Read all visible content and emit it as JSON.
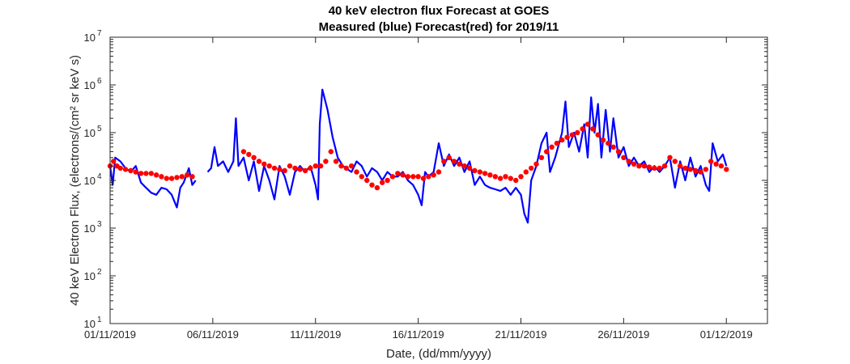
{
  "chart_data": {
    "type": "line",
    "title": "40 keV electron flux Forecast at GOES",
    "subtitle": "Measured (blue) Forecast(red) for 2019/11",
    "xlabel": "Date, (dd/mm/yyyy)",
    "ylabel": "40 keV Electron Flux, (electrons/(cm² sr keV s)",
    "yscale": "log",
    "xlim": [
      "2019-11-01",
      "2019-12-03"
    ],
    "ylim": [
      10,
      10000000
    ],
    "x_ticks": [
      "01/11/2019",
      "06/11/2019",
      "11/11/2019",
      "16/11/2019",
      "21/11/2019",
      "26/11/2019",
      "01/12/2019"
    ],
    "y_ticks": [
      {
        "base": "10",
        "exp": "1"
      },
      {
        "base": "10",
        "exp": "2"
      },
      {
        "base": "10",
        "exp": "3"
      },
      {
        "base": "10",
        "exp": "4"
      },
      {
        "base": "10",
        "exp": "5"
      },
      {
        "base": "10",
        "exp": "6"
      },
      {
        "base": "10",
        "exp": "7"
      }
    ],
    "grid": false,
    "box": true,
    "colors": {
      "measured": "#0000ff",
      "forecast": "#ff0000",
      "axis": "#262626"
    },
    "series": [
      {
        "style": "line",
        "color": "#0000ff",
        "points": [
          [
            "2019-11-01 00:00",
            20000
          ],
          [
            "2019-11-01 03:00",
            8000
          ],
          [
            "2019-11-01 06:00",
            30000
          ],
          [
            "2019-11-01 12:00",
            25000
          ],
          [
            "2019-11-01 18:00",
            18000
          ],
          [
            "2019-11-02 00:00",
            15000
          ],
          [
            "2019-11-02 06:00",
            20000
          ],
          [
            "2019-11-02 12:00",
            9000
          ],
          [
            "2019-11-02 18:00",
            7000
          ],
          [
            "2019-11-03 00:00",
            5500
          ],
          [
            "2019-11-03 06:00",
            5000
          ],
          [
            "2019-11-03 12:00",
            7000
          ],
          [
            "2019-11-03 18:00",
            6500
          ],
          [
            "2019-11-04 00:00",
            5000
          ],
          [
            "2019-11-04 06:00",
            2700
          ],
          [
            "2019-11-04 10:00",
            7000
          ],
          [
            "2019-11-04 14:00",
            9000
          ],
          [
            "2019-11-04 20:00",
            18000
          ],
          [
            "2019-11-05 00:00",
            8000
          ],
          [
            "2019-11-05 04:00",
            10000
          ],
          [
            null,
            null
          ],
          [
            "2019-11-05 18:00",
            15000
          ],
          [
            "2019-11-05 22:00",
            18000
          ],
          [
            "2019-11-06 02:00",
            50000
          ],
          [
            "2019-11-06 06:00",
            20000
          ],
          [
            "2019-11-06 12:00",
            25000
          ],
          [
            "2019-11-06 18:00",
            15000
          ],
          [
            "2019-11-07 00:00",
            25000
          ],
          [
            "2019-11-07 03:00",
            200000
          ],
          [
            "2019-11-07 06:00",
            20000
          ],
          [
            "2019-11-07 12:00",
            30000
          ],
          [
            "2019-11-07 18:00",
            10000
          ],
          [
            "2019-11-08 00:00",
            25000
          ],
          [
            "2019-11-08 06:00",
            6000
          ],
          [
            "2019-11-08 12:00",
            20000
          ],
          [
            "2019-11-08 18:00",
            10000
          ],
          [
            "2019-11-09 00:00",
            4000
          ],
          [
            "2019-11-09 06:00",
            20000
          ],
          [
            "2019-11-09 12:00",
            12000
          ],
          [
            "2019-11-09 18:00",
            5000
          ],
          [
            "2019-11-10 00:00",
            15000
          ],
          [
            "2019-11-10 06:00",
            20000
          ],
          [
            "2019-11-10 12:00",
            15000
          ],
          [
            "2019-11-10 18:00",
            20000
          ],
          [
            "2019-11-11 00:00",
            8000
          ],
          [
            "2019-11-11 03:00",
            4000
          ],
          [
            "2019-11-11 05:00",
            150000
          ],
          [
            "2019-11-11 08:00",
            800000
          ],
          [
            "2019-11-11 14:00",
            300000
          ],
          [
            "2019-11-11 20:00",
            80000
          ],
          [
            "2019-11-12 02:00",
            30000
          ],
          [
            "2019-11-12 08:00",
            20000
          ],
          [
            "2019-11-12 18:00",
            15000
          ],
          [
            "2019-11-13 00:00",
            25000
          ],
          [
            "2019-11-13 06:00",
            20000
          ],
          [
            "2019-11-13 12:00",
            12000
          ],
          [
            "2019-11-13 18:00",
            18000
          ],
          [
            "2019-11-14 00:00",
            15000
          ],
          [
            "2019-11-14 06:00",
            10000
          ],
          [
            "2019-11-14 12:00",
            15000
          ],
          [
            "2019-11-14 18:00",
            12000
          ],
          [
            "2019-11-15 00:00",
            12000
          ],
          [
            "2019-11-15 06:00",
            15000
          ],
          [
            "2019-11-15 12:00",
            10000
          ],
          [
            "2019-11-15 18:00",
            8000
          ],
          [
            "2019-11-16 00:00",
            5000
          ],
          [
            "2019-11-16 04:00",
            3000
          ],
          [
            "2019-11-16 08:00",
            15000
          ],
          [
            "2019-11-16 12:00",
            12000
          ],
          [
            "2019-11-16 18:00",
            15000
          ],
          [
            "2019-11-17 00:00",
            60000
          ],
          [
            "2019-11-17 06:00",
            20000
          ],
          [
            "2019-11-17 12:00",
            35000
          ],
          [
            "2019-11-17 18:00",
            20000
          ],
          [
            "2019-11-18 00:00",
            30000
          ],
          [
            "2019-11-18 06:00",
            15000
          ],
          [
            "2019-11-18 12:00",
            25000
          ],
          [
            "2019-11-18 18:00",
            8000
          ],
          [
            "2019-11-19 00:00",
            12000
          ],
          [
            "2019-11-19 06:00",
            8000
          ],
          [
            "2019-11-19 12:00",
            7000
          ],
          [
            "2019-11-19 18:00",
            6500
          ],
          [
            "2019-11-20 00:00",
            6000
          ],
          [
            "2019-11-20 06:00",
            7000
          ],
          [
            "2019-11-20 12:00",
            5000
          ],
          [
            "2019-11-20 18:00",
            7000
          ],
          [
            "2019-11-21 00:00",
            5000
          ],
          [
            "2019-11-21 04:00",
            2000
          ],
          [
            "2019-11-21 08:00",
            1300
          ],
          [
            "2019-11-21 12:00",
            10000
          ],
          [
            "2019-11-21 18:00",
            20000
          ],
          [
            "2019-11-22 00:00",
            60000
          ],
          [
            "2019-11-22 06:00",
            100000
          ],
          [
            "2019-11-22 10:00",
            15000
          ],
          [
            "2019-11-22 16:00",
            30000
          ],
          [
            "2019-11-23 00:00",
            100000
          ],
          [
            "2019-11-23 04:00",
            450000
          ],
          [
            "2019-11-23 08:00",
            50000
          ],
          [
            "2019-11-23 14:00",
            100000
          ],
          [
            "2019-11-23 20:00",
            40000
          ],
          [
            "2019-11-24 02:00",
            150000
          ],
          [
            "2019-11-24 06:00",
            30000
          ],
          [
            "2019-11-24 10:00",
            550000
          ],
          [
            "2019-11-24 14:00",
            100000
          ],
          [
            "2019-11-24 18:00",
            400000
          ],
          [
            "2019-11-24 22:00",
            30000
          ],
          [
            "2019-11-25 03:00",
            300000
          ],
          [
            "2019-11-25 08:00",
            40000
          ],
          [
            "2019-11-25 12:00",
            200000
          ],
          [
            "2019-11-25 18:00",
            30000
          ],
          [
            "2019-11-26 00:00",
            50000
          ],
          [
            "2019-11-26 06:00",
            20000
          ],
          [
            "2019-11-26 12:00",
            30000
          ],
          [
            "2019-11-26 18:00",
            20000
          ],
          [
            "2019-11-27 00:00",
            25000
          ],
          [
            "2019-11-27 06:00",
            15000
          ],
          [
            "2019-11-27 12:00",
            20000
          ],
          [
            "2019-11-27 18:00",
            15000
          ],
          [
            "2019-11-28 00:00",
            20000
          ],
          [
            "2019-11-28 06:00",
            30000
          ],
          [
            "2019-11-28 12:00",
            7000
          ],
          [
            "2019-11-28 18:00",
            25000
          ],
          [
            "2019-11-29 00:00",
            10000
          ],
          [
            "2019-11-29 06:00",
            30000
          ],
          [
            "2019-11-29 12:00",
            12000
          ],
          [
            "2019-11-29 18:00",
            20000
          ],
          [
            "2019-11-30 00:00",
            8000
          ],
          [
            "2019-11-30 04:00",
            6000
          ],
          [
            "2019-11-30 08:00",
            60000
          ],
          [
            "2019-11-30 14:00",
            25000
          ],
          [
            "2019-11-30 20:00",
            35000
          ],
          [
            "2019-12-01 00:00",
            20000
          ]
        ]
      },
      {
        "style": "markers",
        "color": "#ff0000",
        "points": [
          [
            "2019-11-01 00:00",
            20000
          ],
          [
            "2019-11-01 04:00",
            25000
          ],
          [
            "2019-11-01 08:00",
            20000
          ],
          [
            "2019-11-01 12:00",
            18000
          ],
          [
            "2019-11-01 18:00",
            17000
          ],
          [
            "2019-11-02 00:00",
            16000
          ],
          [
            "2019-11-02 06:00",
            15000
          ],
          [
            "2019-11-02 12:00",
            14000
          ],
          [
            "2019-11-02 18:00",
            14000
          ],
          [
            "2019-11-03 00:00",
            14000
          ],
          [
            "2019-11-03 06:00",
            13000
          ],
          [
            "2019-11-03 12:00",
            12000
          ],
          [
            "2019-11-03 18:00",
            11000
          ],
          [
            "2019-11-04 00:00",
            11000
          ],
          [
            "2019-11-04 06:00",
            11500
          ],
          [
            "2019-11-04 12:00",
            12000
          ],
          [
            "2019-11-04 18:00",
            13000
          ],
          [
            "2019-11-05 00:00",
            12000
          ],
          [
            "2019-11-07 12:00",
            40000
          ],
          [
            "2019-11-07 18:00",
            35000
          ],
          [
            "2019-11-08 00:00",
            30000
          ],
          [
            "2019-11-08 06:00",
            25000
          ],
          [
            "2019-11-08 12:00",
            22000
          ],
          [
            "2019-11-08 18:00",
            20000
          ],
          [
            "2019-11-09 00:00",
            18000
          ],
          [
            "2019-11-09 06:00",
            17000
          ],
          [
            "2019-11-09 12:00",
            16000
          ],
          [
            "2019-11-09 18:00",
            20000
          ],
          [
            "2019-11-10 00:00",
            18000
          ],
          [
            "2019-11-10 06:00",
            17000
          ],
          [
            "2019-11-10 12:00",
            16000
          ],
          [
            "2019-11-10 18:00",
            18000
          ],
          [
            "2019-11-11 00:00",
            20000
          ],
          [
            "2019-11-11 06:00",
            20000
          ],
          [
            "2019-11-11 12:00",
            25000
          ],
          [
            "2019-11-11 18:00",
            40000
          ],
          [
            "2019-11-12 00:00",
            25000
          ],
          [
            "2019-11-12 06:00",
            20000
          ],
          [
            "2019-11-12 12:00",
            18000
          ],
          [
            "2019-11-12 18:00",
            20000
          ],
          [
            "2019-11-13 00:00",
            15000
          ],
          [
            "2019-11-13 06:00",
            12000
          ],
          [
            "2019-11-13 12:00",
            10000
          ],
          [
            "2019-11-13 18:00",
            8000
          ],
          [
            "2019-11-14 00:00",
            7000
          ],
          [
            "2019-11-14 06:00",
            9000
          ],
          [
            "2019-11-14 12:00",
            10000
          ],
          [
            "2019-11-14 18:00",
            12000
          ],
          [
            "2019-11-15 00:00",
            14000
          ],
          [
            "2019-11-15 06:00",
            13000
          ],
          [
            "2019-11-15 12:00",
            12000
          ],
          [
            "2019-11-15 18:00",
            12000
          ],
          [
            "2019-11-16 00:00",
            12000
          ],
          [
            "2019-11-16 06:00",
            11000
          ],
          [
            "2019-11-16 12:00",
            12000
          ],
          [
            "2019-11-16 18:00",
            13000
          ],
          [
            "2019-11-17 00:00",
            15000
          ],
          [
            "2019-11-17 06:00",
            25000
          ],
          [
            "2019-11-17 12:00",
            30000
          ],
          [
            "2019-11-17 18:00",
            25000
          ],
          [
            "2019-11-18 00:00",
            22000
          ],
          [
            "2019-11-18 06:00",
            20000
          ],
          [
            "2019-11-18 12:00",
            18000
          ],
          [
            "2019-11-18 18:00",
            16000
          ],
          [
            "2019-11-19 00:00",
            15000
          ],
          [
            "2019-11-19 06:00",
            14000
          ],
          [
            "2019-11-19 12:00",
            13000
          ],
          [
            "2019-11-19 18:00",
            12000
          ],
          [
            "2019-11-20 00:00",
            11000
          ],
          [
            "2019-11-20 06:00",
            12000
          ],
          [
            "2019-11-20 12:00",
            11000
          ],
          [
            "2019-11-20 18:00",
            10000
          ],
          [
            "2019-11-21 00:00",
            12000
          ],
          [
            "2019-11-21 06:00",
            15000
          ],
          [
            "2019-11-21 12:00",
            18000
          ],
          [
            "2019-11-21 18:00",
            22000
          ],
          [
            "2019-11-22 00:00",
            30000
          ],
          [
            "2019-11-22 06:00",
            40000
          ],
          [
            "2019-11-22 12:00",
            50000
          ],
          [
            "2019-11-22 18:00",
            60000
          ],
          [
            "2019-11-23 00:00",
            70000
          ],
          [
            "2019-11-23 06:00",
            80000
          ],
          [
            "2019-11-23 12:00",
            90000
          ],
          [
            "2019-11-23 18:00",
            100000
          ],
          [
            "2019-11-24 00:00",
            120000
          ],
          [
            "2019-11-24 06:00",
            150000
          ],
          [
            "2019-11-24 12:00",
            120000
          ],
          [
            "2019-11-24 18:00",
            90000
          ],
          [
            "2019-11-25 00:00",
            70000
          ],
          [
            "2019-11-25 06:00",
            60000
          ],
          [
            "2019-11-25 12:00",
            50000
          ],
          [
            "2019-11-25 18:00",
            40000
          ],
          [
            "2019-11-26 00:00",
            30000
          ],
          [
            "2019-11-26 06:00",
            25000
          ],
          [
            "2019-11-26 12:00",
            22000
          ],
          [
            "2019-11-26 18:00",
            20000
          ],
          [
            "2019-11-27 00:00",
            20000
          ],
          [
            "2019-11-27 06:00",
            19000
          ],
          [
            "2019-11-27 12:00",
            18000
          ],
          [
            "2019-11-27 18:00",
            18000
          ],
          [
            "2019-11-28 00:00",
            20000
          ],
          [
            "2019-11-28 06:00",
            30000
          ],
          [
            "2019-11-28 12:00",
            25000
          ],
          [
            "2019-11-28 18:00",
            20000
          ],
          [
            "2019-11-29 00:00",
            18000
          ],
          [
            "2019-11-29 06:00",
            17000
          ],
          [
            "2019-11-29 12:00",
            16000
          ],
          [
            "2019-11-29 18:00",
            15000
          ],
          [
            "2019-11-30 00:00",
            17000
          ],
          [
            "2019-11-30 06:00",
            25000
          ],
          [
            "2019-11-30 12:00",
            22000
          ],
          [
            "2019-11-30 18:00",
            20000
          ],
          [
            "2019-12-01 00:00",
            17000
          ]
        ]
      }
    ]
  }
}
